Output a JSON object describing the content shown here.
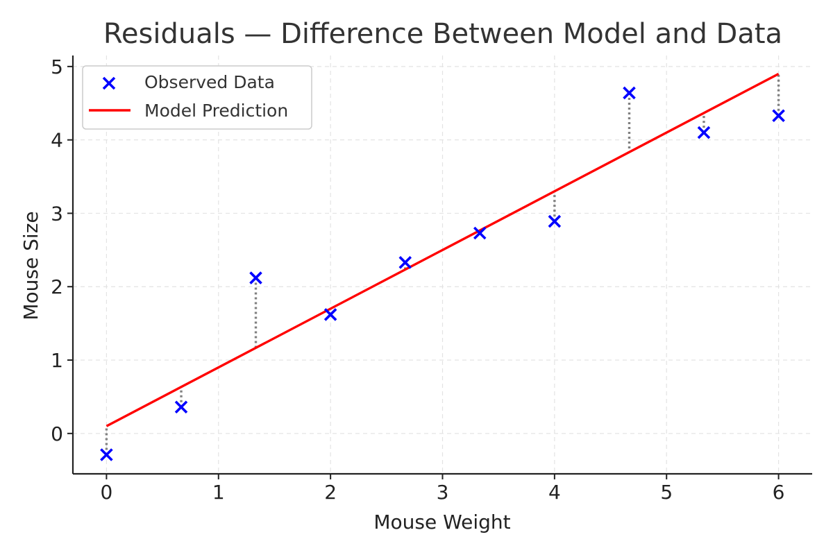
{
  "chart_data": {
    "type": "scatter",
    "title": "Residuals — Difference Between Model and Data",
    "xlabel": "Mouse Weight",
    "ylabel": "Mouse Size",
    "xlim": [
      -0.3,
      6.3
    ],
    "ylim": [
      -0.55,
      5.15
    ],
    "xticks": [
      0,
      1,
      2,
      3,
      4,
      5,
      6
    ],
    "yticks": [
      0,
      1,
      2,
      3,
      4,
      5
    ],
    "grid": true,
    "legend_position": "top-left",
    "legend": [
      "Observed Data",
      "Model Prediction"
    ],
    "series": [
      {
        "name": "Observed Data",
        "kind": "scatter",
        "marker": "x",
        "color": "#0000ff",
        "x": [
          0,
          0.667,
          1.333,
          2.0,
          2.667,
          3.333,
          4.0,
          4.667,
          5.333,
          6.0
        ],
        "y": [
          -0.29,
          0.36,
          2.12,
          1.62,
          2.33,
          2.73,
          2.89,
          4.64,
          4.1,
          4.33
        ]
      },
      {
        "name": "Model Prediction",
        "kind": "line",
        "color": "#ff0000",
        "x": [
          0,
          6.0
        ],
        "y": [
          0.1,
          4.9
        ]
      }
    ],
    "residuals": {
      "color": "#808080",
      "style": "dotted",
      "model_y": [
        0.1,
        0.63,
        1.17,
        1.7,
        2.23,
        2.77,
        3.3,
        3.83,
        4.37,
        4.9
      ]
    }
  }
}
